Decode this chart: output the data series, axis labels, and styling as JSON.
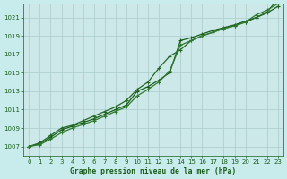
{
  "title": "Graphe pression niveau de la mer (hPa)",
  "background_color": "#c8ecec",
  "plot_bg_color": "#cce8e8",
  "grid_color": "#aacccc",
  "line_color_1": "#1a5c1a",
  "line_color_2": "#246824",
  "line_color_3": "#2e7a2e",
  "xlim_min": -0.5,
  "xlim_max": 23.5,
  "ylim_min": 1006.0,
  "ylim_max": 1022.5,
  "yticks": [
    1007,
    1009,
    1011,
    1013,
    1015,
    1017,
    1019,
    1021
  ],
  "xticks": [
    0,
    1,
    2,
    3,
    4,
    5,
    6,
    7,
    8,
    9,
    10,
    11,
    12,
    13,
    14,
    15,
    16,
    17,
    18,
    19,
    20,
    21,
    22,
    23
  ],
  "x": [
    0,
    1,
    2,
    3,
    4,
    5,
    6,
    7,
    8,
    9,
    10,
    11,
    12,
    13,
    14,
    15,
    16,
    17,
    18,
    19,
    20,
    21,
    22,
    23
  ],
  "line1_y": [
    1007.0,
    1007.3,
    1008.0,
    1008.8,
    1009.2,
    1009.6,
    1010.0,
    1010.5,
    1011.0,
    1011.5,
    1013.0,
    1013.5,
    1014.2,
    1015.0,
    1018.5,
    1018.8,
    1019.2,
    1019.6,
    1019.9,
    1020.2,
    1020.6,
    1021.0,
    1021.5,
    1022.2
  ],
  "line2_y": [
    1007.0,
    1007.4,
    1008.2,
    1009.0,
    1009.3,
    1009.8,
    1010.3,
    1010.8,
    1011.3,
    1012.0,
    1013.2,
    1014.0,
    1015.5,
    1016.8,
    1017.5,
    1018.5,
    1019.0,
    1019.4,
    1019.8,
    1020.1,
    1020.5,
    1021.0,
    1021.6,
    1023.0
  ],
  "line3_y": [
    1007.0,
    1007.2,
    1007.8,
    1008.5,
    1009.0,
    1009.4,
    1009.8,
    1010.3,
    1010.8,
    1011.3,
    1012.5,
    1013.2,
    1014.0,
    1015.2,
    1018.0,
    1018.5,
    1019.0,
    1019.4,
    1019.8,
    1020.1,
    1020.5,
    1021.3,
    1021.8,
    1022.5
  ],
  "tick_color": "#1a5c1a",
  "tick_fontsize": 5.0,
  "xlabel_fontsize": 5.8,
  "marker_size": 3,
  "linewidth": 0.9
}
